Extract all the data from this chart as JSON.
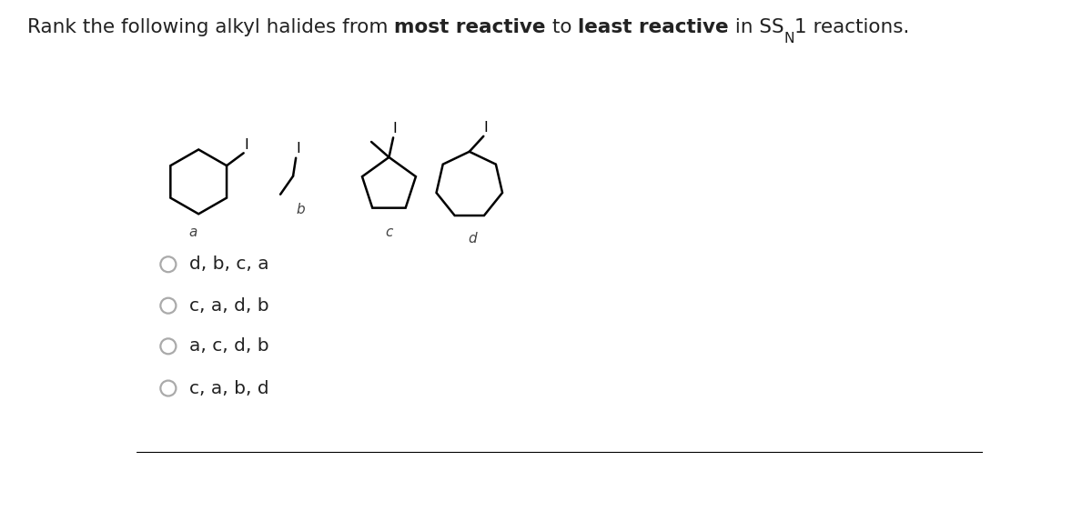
{
  "title_segments": [
    {
      "text": "Rank the following alkyl halides from ",
      "bold": false
    },
    {
      "text": "most reactive",
      "bold": true
    },
    {
      "text": " to ",
      "bold": false
    },
    {
      "text": "least reactive",
      "bold": true
    },
    {
      "text": " in S",
      "bold": false
    },
    {
      "text": "N1 reactions.",
      "bold": false,
      "sn1": true
    }
  ],
  "choices": [
    "d, b, c, a",
    "c, a, d, b",
    "a, c, d, b",
    "c, a, b, d"
  ],
  "bg_color": "#ffffff",
  "text_color": "#222222",
  "title_fontsize": 15.5,
  "choice_fontsize": 14.5,
  "radio_color": "#aaaaaa"
}
